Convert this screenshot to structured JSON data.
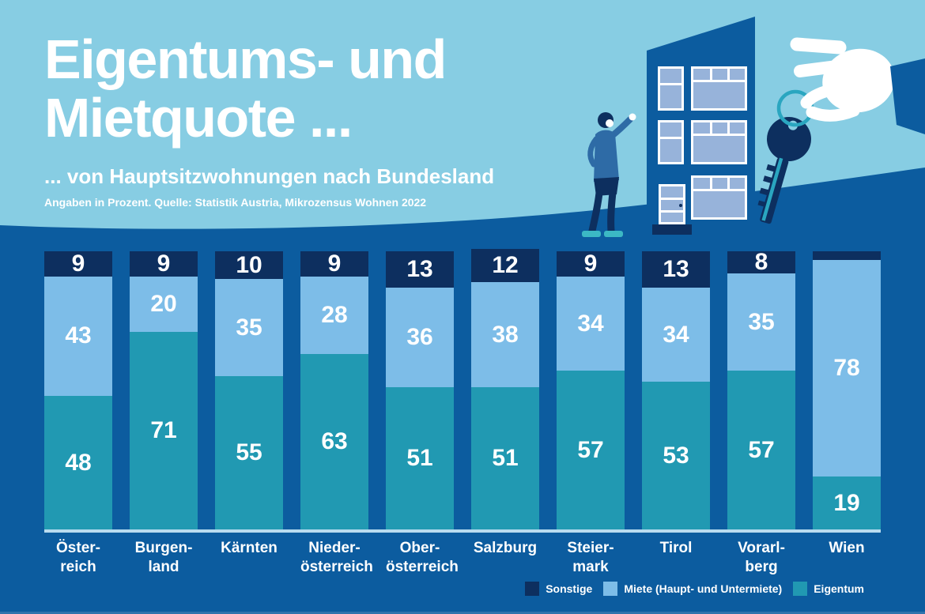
{
  "header": {
    "title_line1": "Eigentums- und",
    "title_line2": "Mietquote ...",
    "subtitle": "... von Hauptsitzwohnungen nach Bundesland",
    "source": "Angaben in Prozent. Quelle: Statistik Austria, Mikrozensus Wohnen 2022"
  },
  "colors": {
    "page-bg": "#0c5c9f",
    "header-bg": "#87cde3",
    "navy": "#0d2f5f",
    "miete-blue": "#7dbde8",
    "eigentum-teal": "#2199b2",
    "window-blue": "#97b3da",
    "sweater-blue": "#2e6ba6",
    "shoe-teal": "#3cb8c4",
    "key-ring-teal": "#2aa6c0",
    "baseline-light": "#b9dcf0"
  },
  "legend": {
    "items": [
      {
        "key": "sonstige",
        "label": "Sonstige",
        "color": "#0d2f5f"
      },
      {
        "key": "miete",
        "label": "Miete (Haupt- und Untermiete)",
        "color": "#7dbde8"
      },
      {
        "key": "eigentum",
        "label": "Eigentum",
        "color": "#2199b2"
      }
    ]
  },
  "illustration": {
    "elements": [
      "apartment-building",
      "person",
      "hand-holding-key"
    ]
  },
  "chart_data": {
    "type": "bar",
    "stacked": true,
    "unit": "percent",
    "title": "Eigentums- und Mietquote ... von Hauptsitzwohnungen nach Bundesland",
    "ylim": [
      0,
      100
    ],
    "grid": false,
    "legend_position": "bottom-right",
    "categories": [
      "Österreich",
      "Burgenland",
      "Kärnten",
      "Niederösterreich",
      "Oberösterreich",
      "Salzburg",
      "Steiermark",
      "Tirol",
      "Vorarlberg",
      "Wien"
    ],
    "category_display": [
      [
        "Öster-",
        "reich"
      ],
      [
        "Burgen-",
        "land"
      ],
      [
        "Kärnten"
      ],
      [
        "Nieder-",
        "österreich"
      ],
      [
        "Ober-",
        "österreich"
      ],
      [
        "Salzburg"
      ],
      [
        "Steier-",
        "mark"
      ],
      [
        "Tirol"
      ],
      [
        "Vorarl-",
        "berg"
      ],
      [
        "Wien"
      ]
    ],
    "series": [
      {
        "key": "sonstige",
        "name": "Sonstige",
        "color": "#0d2f5f",
        "values": [
          9,
          9,
          10,
          9,
          13,
          12,
          9,
          13,
          8,
          3
        ],
        "labels": [
          "9",
          "9",
          "10",
          "9",
          "13",
          "12",
          "9",
          "13",
          "8",
          ""
        ]
      },
      {
        "key": "miete",
        "name": "Miete (Haupt- und Untermiete)",
        "color": "#7dbde8",
        "values": [
          43,
          20,
          35,
          28,
          36,
          38,
          34,
          34,
          35,
          78
        ],
        "labels": [
          "43",
          "20",
          "35",
          "28",
          "36",
          "38",
          "34",
          "34",
          "35",
          "78"
        ]
      },
      {
        "key": "eigentum",
        "name": "Eigentum",
        "color": "#2199b2",
        "values": [
          48,
          71,
          55,
          63,
          51,
          51,
          57,
          53,
          57,
          19
        ],
        "labels": [
          "48",
          "71",
          "55",
          "63",
          "51",
          "51",
          "57",
          "53",
          "57",
          "19"
        ]
      }
    ]
  }
}
